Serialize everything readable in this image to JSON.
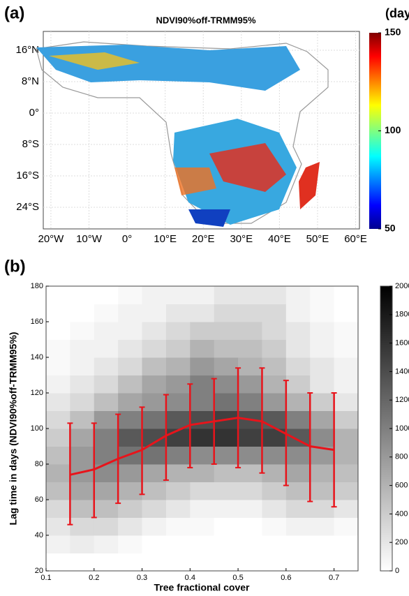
{
  "chart_data": [
    {
      "type": "map",
      "label": "(a)",
      "title": "NDVI90%off-TRMM95%",
      "xlim": [
        -22,
        61
      ],
      "xticks": [
        {
          "value": -20,
          "label": "20°W"
        },
        {
          "value": -10,
          "label": "10°W"
        },
        {
          "value": 0,
          "label": "0°"
        },
        {
          "value": 10,
          "label": "10°E"
        },
        {
          "value": 20,
          "label": "20°E"
        },
        {
          "value": 30,
          "label": "30°E"
        },
        {
          "value": 40,
          "label": "40°E"
        },
        {
          "value": 50,
          "label": "50°E"
        },
        {
          "value": 60,
          "label": "60°E"
        }
      ],
      "ylim": [
        -29.5,
        20.8
      ],
      "yticks": [
        {
          "value": 16,
          "label": "16°N"
        },
        {
          "value": 8,
          "label": "8°N"
        },
        {
          "value": 0,
          "label": "0°"
        },
        {
          "value": -8,
          "label": "8°S"
        },
        {
          "value": -16,
          "label": "16°S"
        },
        {
          "value": -24,
          "label": "24°S"
        }
      ],
      "grid": true,
      "colorbar": {
        "label": "(days)",
        "lim": [
          50,
          150
        ],
        "ticks": [
          50,
          100,
          150
        ],
        "colormap": "jet"
      }
    },
    {
      "type": "heatmap",
      "label": "(b)",
      "x_label": "Tree fractional cover",
      "y_label": "Lag time in days (NDVI90%off-TRMM95%)",
      "xlim": [
        0.1,
        0.75
      ],
      "xticks": [
        0.1,
        0.2,
        0.3,
        0.4,
        0.5,
        0.6,
        0.7
      ],
      "ylim": [
        20,
        180
      ],
      "yticks": [
        20,
        40,
        60,
        80,
        100,
        120,
        140,
        160,
        180
      ],
      "x_bins": [
        0.1,
        0.15,
        0.2,
        0.25,
        0.3,
        0.35,
        0.4,
        0.45,
        0.5,
        0.55,
        0.6,
        0.65,
        0.7,
        0.75
      ],
      "y_bins": [
        20,
        30,
        40,
        50,
        60,
        70,
        80,
        90,
        100,
        110,
        120,
        130,
        140,
        150,
        160,
        170,
        180
      ],
      "z": [
        [
          0,
          0,
          0,
          0,
          0,
          0,
          0,
          0,
          0,
          0,
          0,
          0,
          0
        ],
        [
          100,
          150,
          100,
          50,
          0,
          0,
          0,
          0,
          0,
          0,
          0,
          0,
          0
        ],
        [
          200,
          300,
          300,
          200,
          100,
          50,
          50,
          0,
          0,
          50,
          100,
          100,
          50
        ],
        [
          300,
          500,
          500,
          400,
          300,
          200,
          100,
          100,
          100,
          200,
          300,
          300,
          200
        ],
        [
          500,
          700,
          700,
          600,
          500,
          400,
          300,
          300,
          300,
          400,
          500,
          500,
          400
        ],
        [
          600,
          800,
          900,
          800,
          700,
          600,
          600,
          500,
          500,
          600,
          700,
          600,
          500
        ],
        [
          500,
          800,
          1000,
          1100,
          1100,
          1000,
          900,
          900,
          900,
          900,
          900,
          800,
          600
        ],
        [
          400,
          700,
          1000,
          1300,
          1400,
          1500,
          1600,
          1600,
          1500,
          1500,
          1300,
          900,
          600
        ],
        [
          300,
          500,
          800,
          1000,
          1100,
          1300,
          1400,
          1500,
          1400,
          1300,
          1000,
          700,
          400
        ],
        [
          200,
          300,
          500,
          700,
          800,
          900,
          1000,
          1100,
          1000,
          800,
          600,
          400,
          200
        ],
        [
          100,
          200,
          300,
          500,
          700,
          800,
          1000,
          900,
          800,
          600,
          400,
          200,
          100
        ],
        [
          50,
          100,
          200,
          300,
          500,
          600,
          800,
          700,
          600,
          500,
          300,
          200,
          100
        ],
        [
          50,
          100,
          100,
          200,
          300,
          400,
          600,
          500,
          500,
          400,
          200,
          100,
          50
        ],
        [
          0,
          50,
          100,
          100,
          200,
          300,
          400,
          400,
          400,
          300,
          200,
          100,
          50
        ],
        [
          0,
          0,
          50,
          100,
          100,
          200,
          200,
          300,
          300,
          300,
          100,
          50,
          0
        ],
        [
          0,
          0,
          0,
          50,
          100,
          100,
          100,
          200,
          200,
          200,
          100,
          50,
          0
        ]
      ],
      "colorbar": {
        "lim": [
          0,
          2000
        ],
        "ticks": [
          0,
          200,
          400,
          600,
          800,
          1000,
          1200,
          1400,
          1600,
          1800,
          2000
        ]
      },
      "series": [
        {
          "color": "#e8141b",
          "x": [
            0.15,
            0.2,
            0.25,
            0.3,
            0.35,
            0.4,
            0.45,
            0.5,
            0.55,
            0.6,
            0.65,
            0.7
          ],
          "values": [
            74,
            77,
            83,
            88,
            96,
            102,
            104,
            106,
            104,
            97,
            90,
            88
          ],
          "lower": [
            46,
            50,
            58,
            63,
            71,
            78,
            80,
            78,
            75,
            68,
            59,
            56
          ],
          "upper": [
            103,
            103,
            108,
            112,
            119,
            125,
            128,
            134,
            134,
            127,
            120,
            120
          ]
        }
      ]
    }
  ]
}
